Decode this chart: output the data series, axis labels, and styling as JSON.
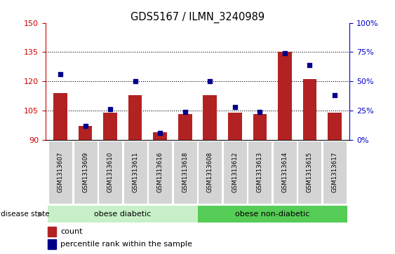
{
  "title": "GDS5167 / ILMN_3240989",
  "samples": [
    "GSM1313607",
    "GSM1313609",
    "GSM1313610",
    "GSM1313611",
    "GSM1313616",
    "GSM1313618",
    "GSM1313608",
    "GSM1313612",
    "GSM1313613",
    "GSM1313614",
    "GSM1313615",
    "GSM1313617"
  ],
  "counts": [
    114,
    97,
    104,
    113,
    94,
    103,
    113,
    104,
    103,
    135,
    121,
    104
  ],
  "percentile_ranks": [
    56,
    12,
    26,
    50,
    6,
    24,
    50,
    28,
    24,
    74,
    64,
    38
  ],
  "ylim_left": [
    90,
    150
  ],
  "ylim_right": [
    0,
    100
  ],
  "yticks_left": [
    90,
    105,
    120,
    135,
    150
  ],
  "yticks_right": [
    0,
    25,
    50,
    75,
    100
  ],
  "ytick_labels_right": [
    "0%",
    "25%",
    "50%",
    "75%",
    "100%"
  ],
  "bar_color": "#B22222",
  "square_color": "#00008B",
  "grid_dotted_at": [
    105,
    120,
    135
  ],
  "disease_groups": [
    {
      "label": "obese diabetic",
      "start": 0,
      "end": 6,
      "color": "#c8f0c8"
    },
    {
      "label": "obese non-diabetic",
      "start": 6,
      "end": 12,
      "color": "#55cc55"
    }
  ],
  "disease_state_label": "disease state",
  "legend_count_label": "count",
  "legend_percentile_label": "percentile rank within the sample",
  "left_axis_color": "#CC0000",
  "right_axis_color": "#0000CC",
  "xticklabel_bg": "#d0d0d0",
  "xticklabel_fontsize": 6.5,
  "bar_width": 0.55
}
